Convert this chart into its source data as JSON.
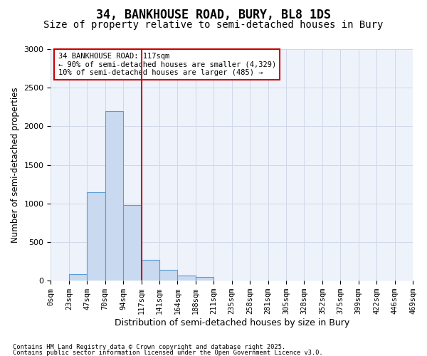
{
  "title": "34, BANKHOUSE ROAD, BURY, BL8 1DS",
  "subtitle": "Size of property relative to semi-detached houses in Bury",
  "xlabel": "Distribution of semi-detached houses by size in Bury",
  "ylabel": "Number of semi-detached properties",
  "footnote1": "Contains HM Land Registry data © Crown copyright and database right 2025.",
  "footnote2": "Contains public sector information licensed under the Open Government Licence v3.0.",
  "annotation_line1": "34 BANKHOUSE ROAD: 117sqm",
  "annotation_line2": "← 90% of semi-detached houses are smaller (4,329)",
  "annotation_line3": "10% of semi-detached houses are larger (485) →",
  "bin_labels": [
    "0sqm",
    "23sqm",
    "47sqm",
    "70sqm",
    "94sqm",
    "117sqm",
    "141sqm",
    "164sqm",
    "188sqm",
    "211sqm",
    "235sqm",
    "258sqm",
    "281sqm",
    "305sqm",
    "328sqm",
    "352sqm",
    "375sqm",
    "399sqm",
    "422sqm",
    "446sqm",
    "469sqm"
  ],
  "bar_heights": [
    0,
    85,
    1150,
    2200,
    980,
    270,
    140,
    70,
    50,
    0,
    0,
    0,
    0,
    0,
    0,
    0,
    0,
    0,
    0,
    0
  ],
  "bar_color": "#c9d9f0",
  "bar_edge_color": "#5b9bd5",
  "vline_color": "#cc0000",
  "grid_color": "#d0d8e8",
  "bg_color": "#eef2fb",
  "ylim": [
    0,
    3000
  ],
  "yticks": [
    0,
    500,
    1000,
    1500,
    2000,
    2500,
    3000
  ],
  "box_color": "#cc0000",
  "title_fontsize": 12,
  "subtitle_fontsize": 10,
  "axis_label_fontsize": 8.5,
  "tick_fontsize": 7.5,
  "annotation_fontsize": 7.5
}
